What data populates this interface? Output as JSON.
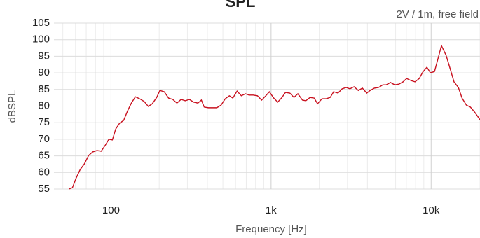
{
  "chart_data": {
    "type": "line",
    "title": "SPL",
    "annotation": "2V / 1m, free field",
    "x_label": "Frequency [Hz]",
    "y_label": "dBSPL",
    "x": [
      54.6,
      57.4,
      60.4,
      64.2,
      68.2,
      72.4,
      76.9,
      81.7,
      86.8,
      92.3,
      97.0,
      102,
      107,
      113,
      120,
      127,
      134,
      142,
      151,
      161,
      171,
      181,
      193,
      202,
      215,
      229,
      243,
      258,
      274,
      291,
      309,
      328,
      349,
      367,
      382,
      406,
      431,
      458,
      487,
      517,
      549,
      577,
      613,
      652,
      692,
      728,
      773,
      822,
      873,
      927,
      975,
      1040,
      1100,
      1170,
      1230,
      1310,
      1390,
      1470,
      1570,
      1650,
      1750,
      1860,
      1950,
      2080,
      2210,
      2340,
      2460,
      2620,
      2780,
      2950,
      3110,
      3300,
      3510,
      3720,
      3960,
      4160,
      4420,
      4700,
      4990,
      5250,
      5570,
      5920,
      6290,
      6680,
      7030,
      7470,
      7930,
      8430,
      8860,
      9410,
      9900,
      10500,
      11100,
      11600,
      12400,
      13100,
      13900,
      14800,
      15600,
      16600,
      17600,
      18700,
      19800,
      20200
    ],
    "values": [
      55.0,
      55.4,
      58.2,
      60.9,
      62.6,
      65.1,
      66.2,
      66.6,
      66.4,
      68.3,
      70.0,
      69.8,
      73.1,
      74.8,
      75.7,
      78.6,
      80.9,
      82.8,
      82.2,
      81.4,
      79.9,
      80.7,
      82.6,
      84.7,
      84.3,
      82.4,
      82.0,
      80.9,
      82.0,
      81.6,
      82.0,
      81.2,
      80.9,
      81.8,
      79.7,
      79.5,
      79.5,
      79.5,
      80.3,
      82.2,
      83.1,
      82.4,
      84.5,
      83.1,
      83.7,
      83.3,
      83.3,
      83.1,
      81.8,
      83.1,
      84.3,
      82.4,
      81.2,
      82.6,
      84.1,
      83.9,
      82.6,
      83.7,
      81.8,
      81.6,
      82.6,
      82.4,
      80.7,
      82.2,
      82.2,
      82.6,
      84.3,
      83.9,
      85.2,
      85.6,
      85.2,
      85.8,
      84.7,
      85.4,
      83.9,
      84.7,
      85.4,
      85.6,
      86.4,
      86.4,
      87.1,
      86.4,
      86.6,
      87.3,
      88.3,
      87.7,
      87.3,
      88.3,
      90.2,
      91.7,
      90.0,
      90.4,
      94.7,
      98.2,
      95.3,
      91.5,
      87.3,
      85.6,
      82.4,
      80.3,
      79.7,
      78.2,
      76.5,
      75.9
    ],
    "color": "#c8101e",
    "xlim": [
      44,
      20200
    ],
    "ylim": [
      55,
      105
    ],
    "xticks": [
      100,
      {
        "value": 1000,
        "label": "1k"
      },
      {
        "value": 10000,
        "label": "10k"
      }
    ],
    "yticks": [
      55,
      60,
      65,
      70,
      75,
      80,
      85,
      90,
      95,
      100,
      105
    ],
    "xscale": "log",
    "grid": true,
    "minor_grid": true
  }
}
